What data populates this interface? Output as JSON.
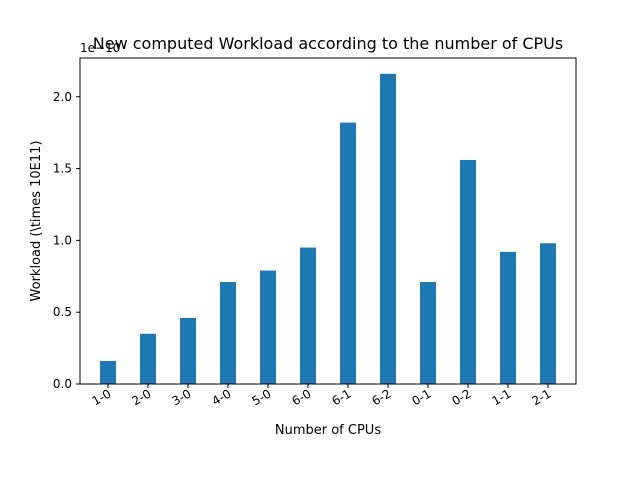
{
  "chart_data": {
    "type": "bar",
    "title": "New computed Workload according to the number of CPUs",
    "xlabel": "Number of CPUs",
    "ylabel": "Workload (\\times 10E11)",
    "y_offset_text": "1e−10",
    "categories": [
      "1-0",
      "2-0",
      "3-0",
      "4-0",
      "5-0",
      "6-0",
      "6-1",
      "6-2",
      "0-1",
      "0-2",
      "1-1",
      "2-1"
    ],
    "values": [
      0.16,
      0.35,
      0.46,
      0.71,
      0.79,
      0.95,
      1.82,
      2.16,
      0.71,
      1.56,
      0.92,
      0.98
    ],
    "ylim": [
      0,
      2.27
    ],
    "yticks": [
      0.0,
      0.5,
      1.0,
      1.5,
      2.0
    ],
    "ytick_labels": [
      "0.0",
      "0.5",
      "1.0",
      "1.5",
      "2.0"
    ],
    "grid": false,
    "bar_color": "#1f77b4"
  }
}
